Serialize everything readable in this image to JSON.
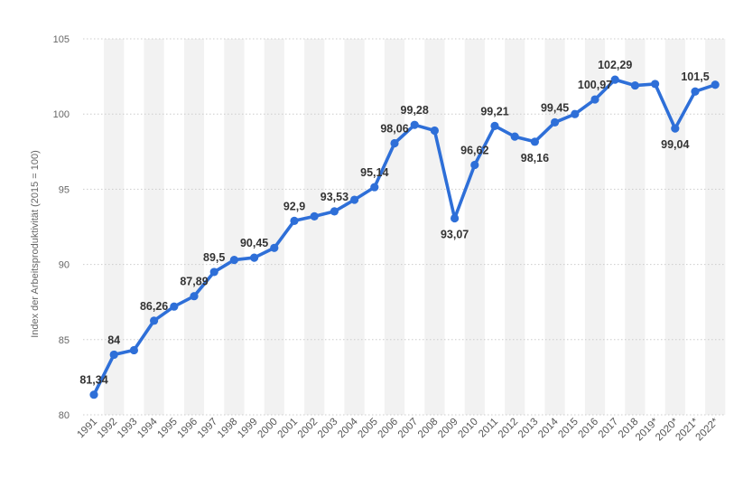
{
  "chart_data": {
    "type": "line",
    "title": "",
    "xlabel": "",
    "ylabel": "Index der Arbeitsproduktivität (2015 = 100)",
    "ylim": [
      80,
      105
    ],
    "yticks": [
      80,
      85,
      90,
      95,
      100,
      105
    ],
    "grid": true,
    "legend": "none",
    "categories": [
      "1991",
      "1992",
      "1993",
      "1994",
      "1995",
      "1996",
      "1997",
      "1998",
      "1999",
      "2000",
      "2001",
      "2002",
      "2003",
      "2004",
      "2005",
      "2006",
      "2007",
      "2008",
      "2009",
      "2010",
      "2011",
      "2012",
      "2013",
      "2014",
      "2015",
      "2016",
      "2017",
      "2018",
      "2019*",
      "2020*",
      "2021*",
      "2022*"
    ],
    "series": [
      {
        "color": "#2e6fd8",
        "values": [
          81.34,
          84,
          84.3,
          86.26,
          87.2,
          87.89,
          89.5,
          90.3,
          90.45,
          91.1,
          92.9,
          93.2,
          93.53,
          94.3,
          95.14,
          98.06,
          99.28,
          98.9,
          93.07,
          96.62,
          99.21,
          98.5,
          98.16,
          99.45,
          100.0,
          100.97,
          102.29,
          101.9,
          102.0,
          99.04,
          101.5,
          101.95
        ],
        "labels": [
          "81,34",
          "84",
          "",
          "86,26",
          "",
          "87,89",
          "89,5",
          "",
          "90,45",
          "",
          "92,9",
          "",
          "93,53",
          "",
          "95,14",
          "98,06",
          "99,28",
          "",
          "93,07",
          "96,62",
          "99,21",
          "",
          "98,16",
          "99,45",
          "",
          "100,97",
          "102,29",
          "",
          "",
          "99,04",
          "101,5",
          ""
        ]
      }
    ]
  }
}
